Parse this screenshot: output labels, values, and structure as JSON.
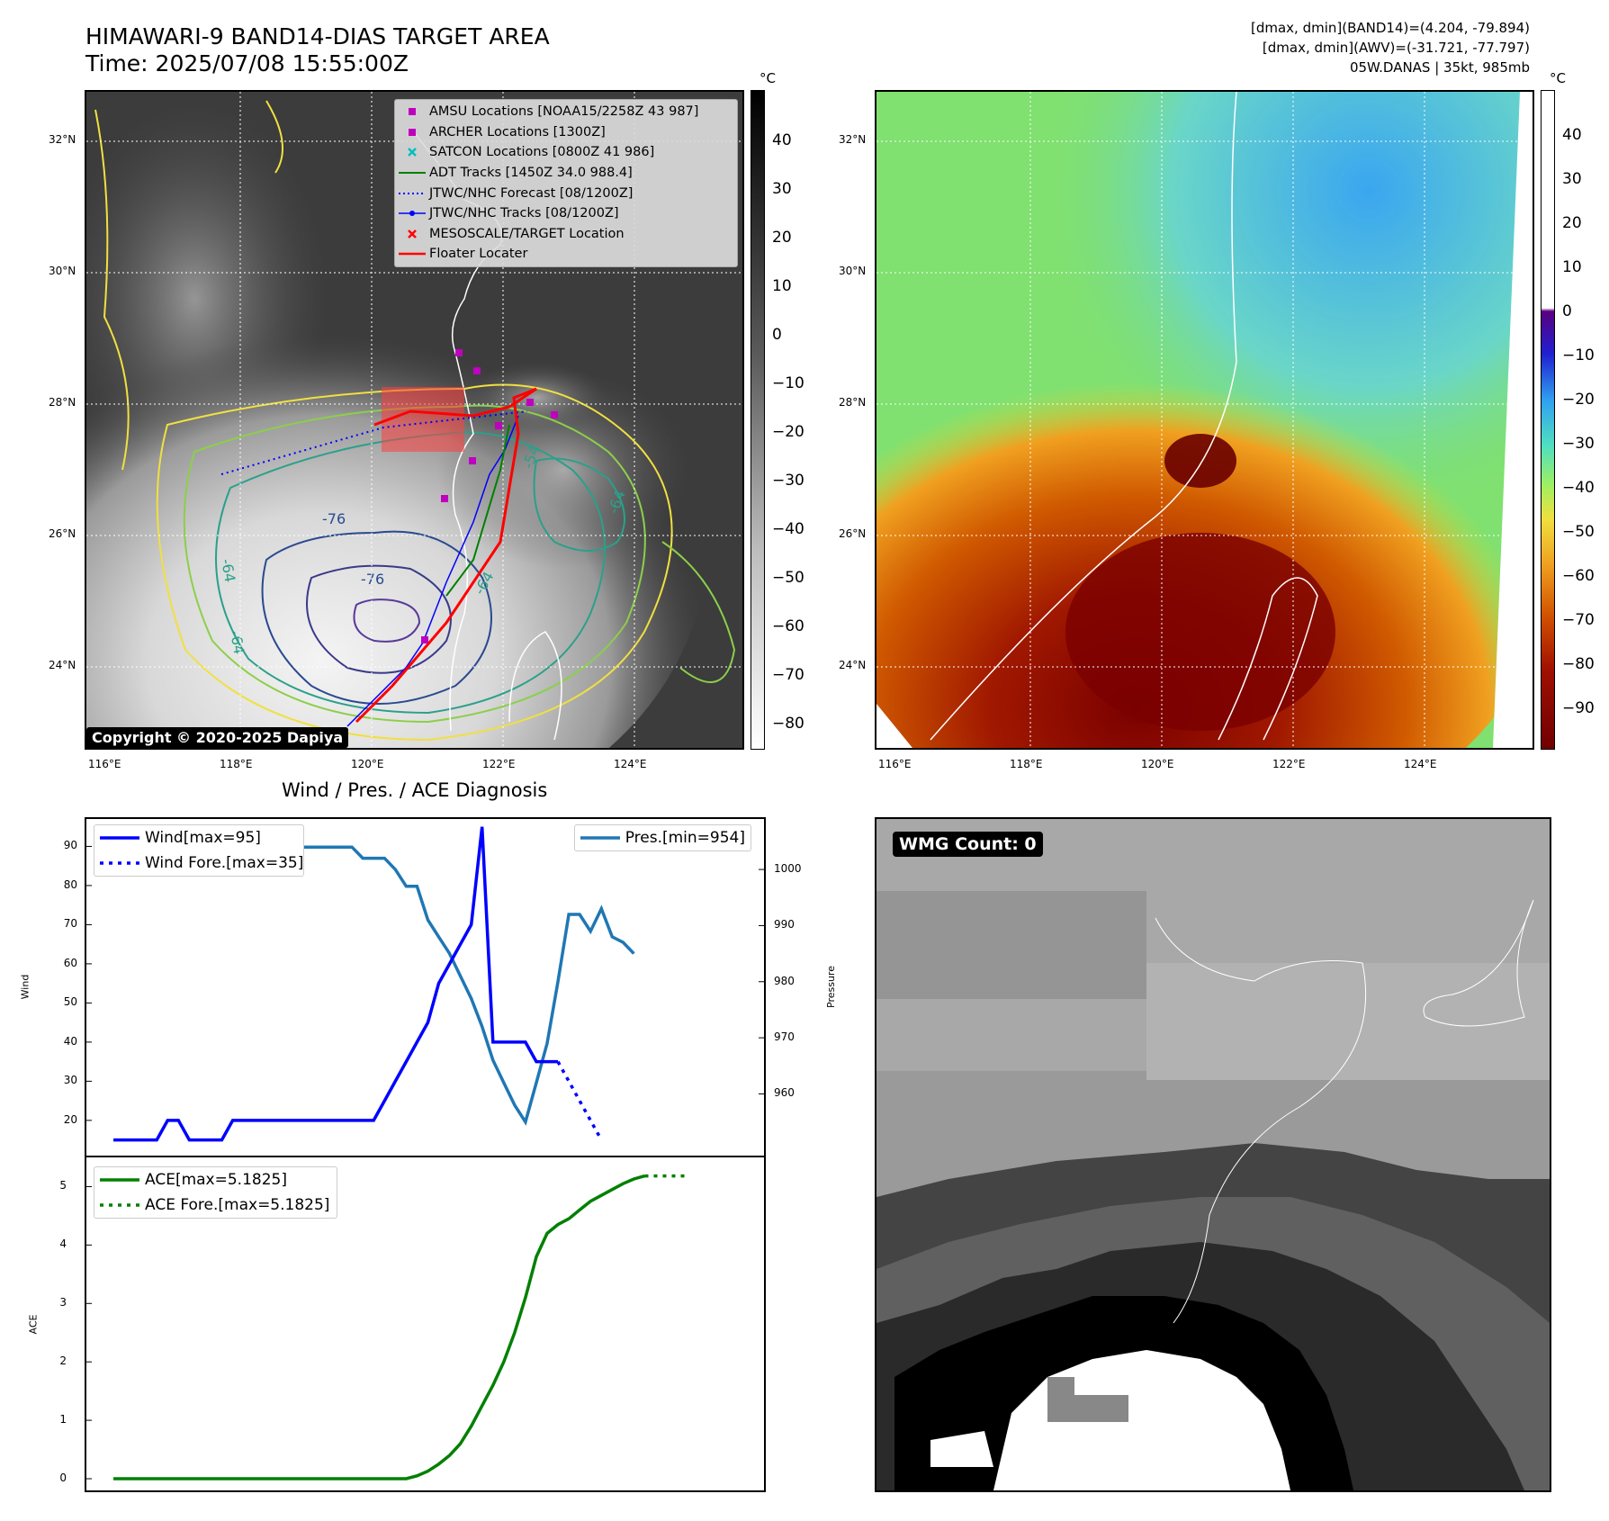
{
  "header": {
    "title_line1": "HIMAWARI-9 BAND14-DIAS TARGET AREA",
    "title_line2": "Time: 2025/07/08 15:55:00Z",
    "info_line1": "[dmax, dmin](BAND14)=(4.204, -79.894)",
    "info_line2": "[dmax, dmin](AWV)=(-31.721, -77.797)",
    "info_line3": "05W.DANAS | 35kt, 985mb"
  },
  "maps": {
    "lat_ticks": [
      "32°N",
      "30°N",
      "28°N",
      "26°N",
      "24°N"
    ],
    "lon_ticks": [
      "116°E",
      "118°E",
      "120°E",
      "122°E",
      "124°E"
    ],
    "copyright": "Copyright © 2020-2025 Dapiya",
    "contour_labels": [
      "-76",
      "-64",
      "-64",
      "-64",
      "-64",
      "-54",
      "-76"
    ]
  },
  "colorbar_ir": {
    "unit": "°C",
    "ticks": [
      "40",
      "30",
      "20",
      "10",
      "0",
      "−10",
      "−20",
      "−30",
      "−40",
      "−50",
      "−60",
      "−70",
      "−80"
    ]
  },
  "colorbar_awv": {
    "unit": "°C",
    "ticks": [
      "40",
      "30",
      "20",
      "10",
      "0",
      "−10",
      "−20",
      "−30",
      "−40",
      "−50",
      "−60",
      "−70",
      "−80",
      "−90"
    ]
  },
  "map_legend": [
    {
      "label": "AMSU Locations [NOAA15/2258Z 43 987]",
      "symbol": "square",
      "color": "#bf00bf"
    },
    {
      "label": "ARCHER Locations [1300Z]",
      "symbol": "square",
      "color": "#bf00bf"
    },
    {
      "label": "SATCON Locations [0800Z 41 986]",
      "symbol": "x",
      "color": "#00bfbf"
    },
    {
      "label": "ADT Tracks [1450Z 34.0 988.4]",
      "symbol": "line",
      "color": "#008000"
    },
    {
      "label": "JTWC/NHC Forecast [08/1200Z]",
      "symbol": "dotted",
      "color": "#0000ff"
    },
    {
      "label": "JTWC/NHC Tracks [08/1200Z]",
      "symbol": "line-dot",
      "color": "#0000ff"
    },
    {
      "label": "MESOSCALE/TARGET Location",
      "symbol": "x",
      "color": "#ff0000"
    },
    {
      "label": "Floater Locater",
      "symbol": "line",
      "color": "#ff0000"
    }
  ],
  "wmg": {
    "label": "WMG Count: 0"
  },
  "colors": {
    "wind": "#0000ff",
    "pressure": "#1f77b4",
    "ace": "#008000"
  },
  "chart_data": [
    {
      "type": "line",
      "title": "Wind / Pres. / ACE Diagnosis",
      "ylabel": "Wind",
      "y2label": "Pressure",
      "ylim": [
        11,
        97
      ],
      "y2lim": [
        949,
        1009
      ],
      "yticks": [
        "20",
        "30",
        "40",
        "50",
        "60",
        "70",
        "80",
        "90"
      ],
      "y2ticks": [
        "960",
        "970",
        "980",
        "990",
        "1000"
      ],
      "series": [
        {
          "name": "Wind[max=95]",
          "axis": "left",
          "values": [
            15,
            15,
            15,
            15,
            15,
            20,
            20,
            15,
            15,
            15,
            15,
            20,
            20,
            20,
            20,
            20,
            20,
            20,
            20,
            20,
            20,
            20,
            20,
            20,
            20,
            25,
            30,
            35,
            40,
            45,
            55,
            60,
            65,
            70,
            95,
            40,
            40,
            40,
            40,
            35,
            35,
            35
          ]
        },
        {
          "name": "Wind Fore.[max=35]",
          "axis": "left",
          "forecast": true,
          "start_index": 41,
          "values": [
            35,
            30,
            25,
            20,
            15
          ]
        },
        {
          "name": "Pres.[min=954]",
          "axis": "right",
          "values": [
            1006,
            1006,
            1006,
            1006,
            1006,
            1003,
            1003,
            1003,
            1003,
            1003,
            1004,
            1004,
            1004,
            1003,
            1003,
            1004,
            1004,
            1004,
            1004,
            1004,
            1004,
            1004,
            1004,
            1002,
            1002,
            1002,
            1000,
            997,
            997,
            991,
            988,
            985,
            981,
            977,
            972,
            966,
            962,
            958,
            955,
            962,
            969,
            980,
            992,
            992,
            989,
            993,
            988,
            987,
            985
          ]
        }
      ]
    },
    {
      "type": "line",
      "ylabel": "ACE",
      "ylim": [
        -0.2,
        5.5
      ],
      "yticks": [
        "0",
        "1",
        "2",
        "3",
        "4",
        "5"
      ],
      "series": [
        {
          "name": "ACE[max=5.1825]",
          "values": [
            0,
            0,
            0,
            0,
            0,
            0,
            0,
            0,
            0,
            0,
            0,
            0,
            0,
            0,
            0,
            0,
            0,
            0,
            0,
            0,
            0,
            0,
            0,
            0,
            0,
            0,
            0,
            0,
            0.05,
            0.13,
            0.25,
            0.4,
            0.6,
            0.9,
            1.25,
            1.6,
            2.0,
            2.5,
            3.1,
            3.8,
            4.2,
            4.35,
            4.45,
            4.6,
            4.75,
            4.85,
            4.95,
            5.05,
            5.13,
            5.1825
          ]
        },
        {
          "name": "ACE Fore.[max=5.1825]",
          "forecast": true,
          "start_index": 49,
          "values": [
            5.1825,
            5.1825,
            5.1825,
            5.1825,
            5.1825
          ]
        }
      ]
    }
  ]
}
